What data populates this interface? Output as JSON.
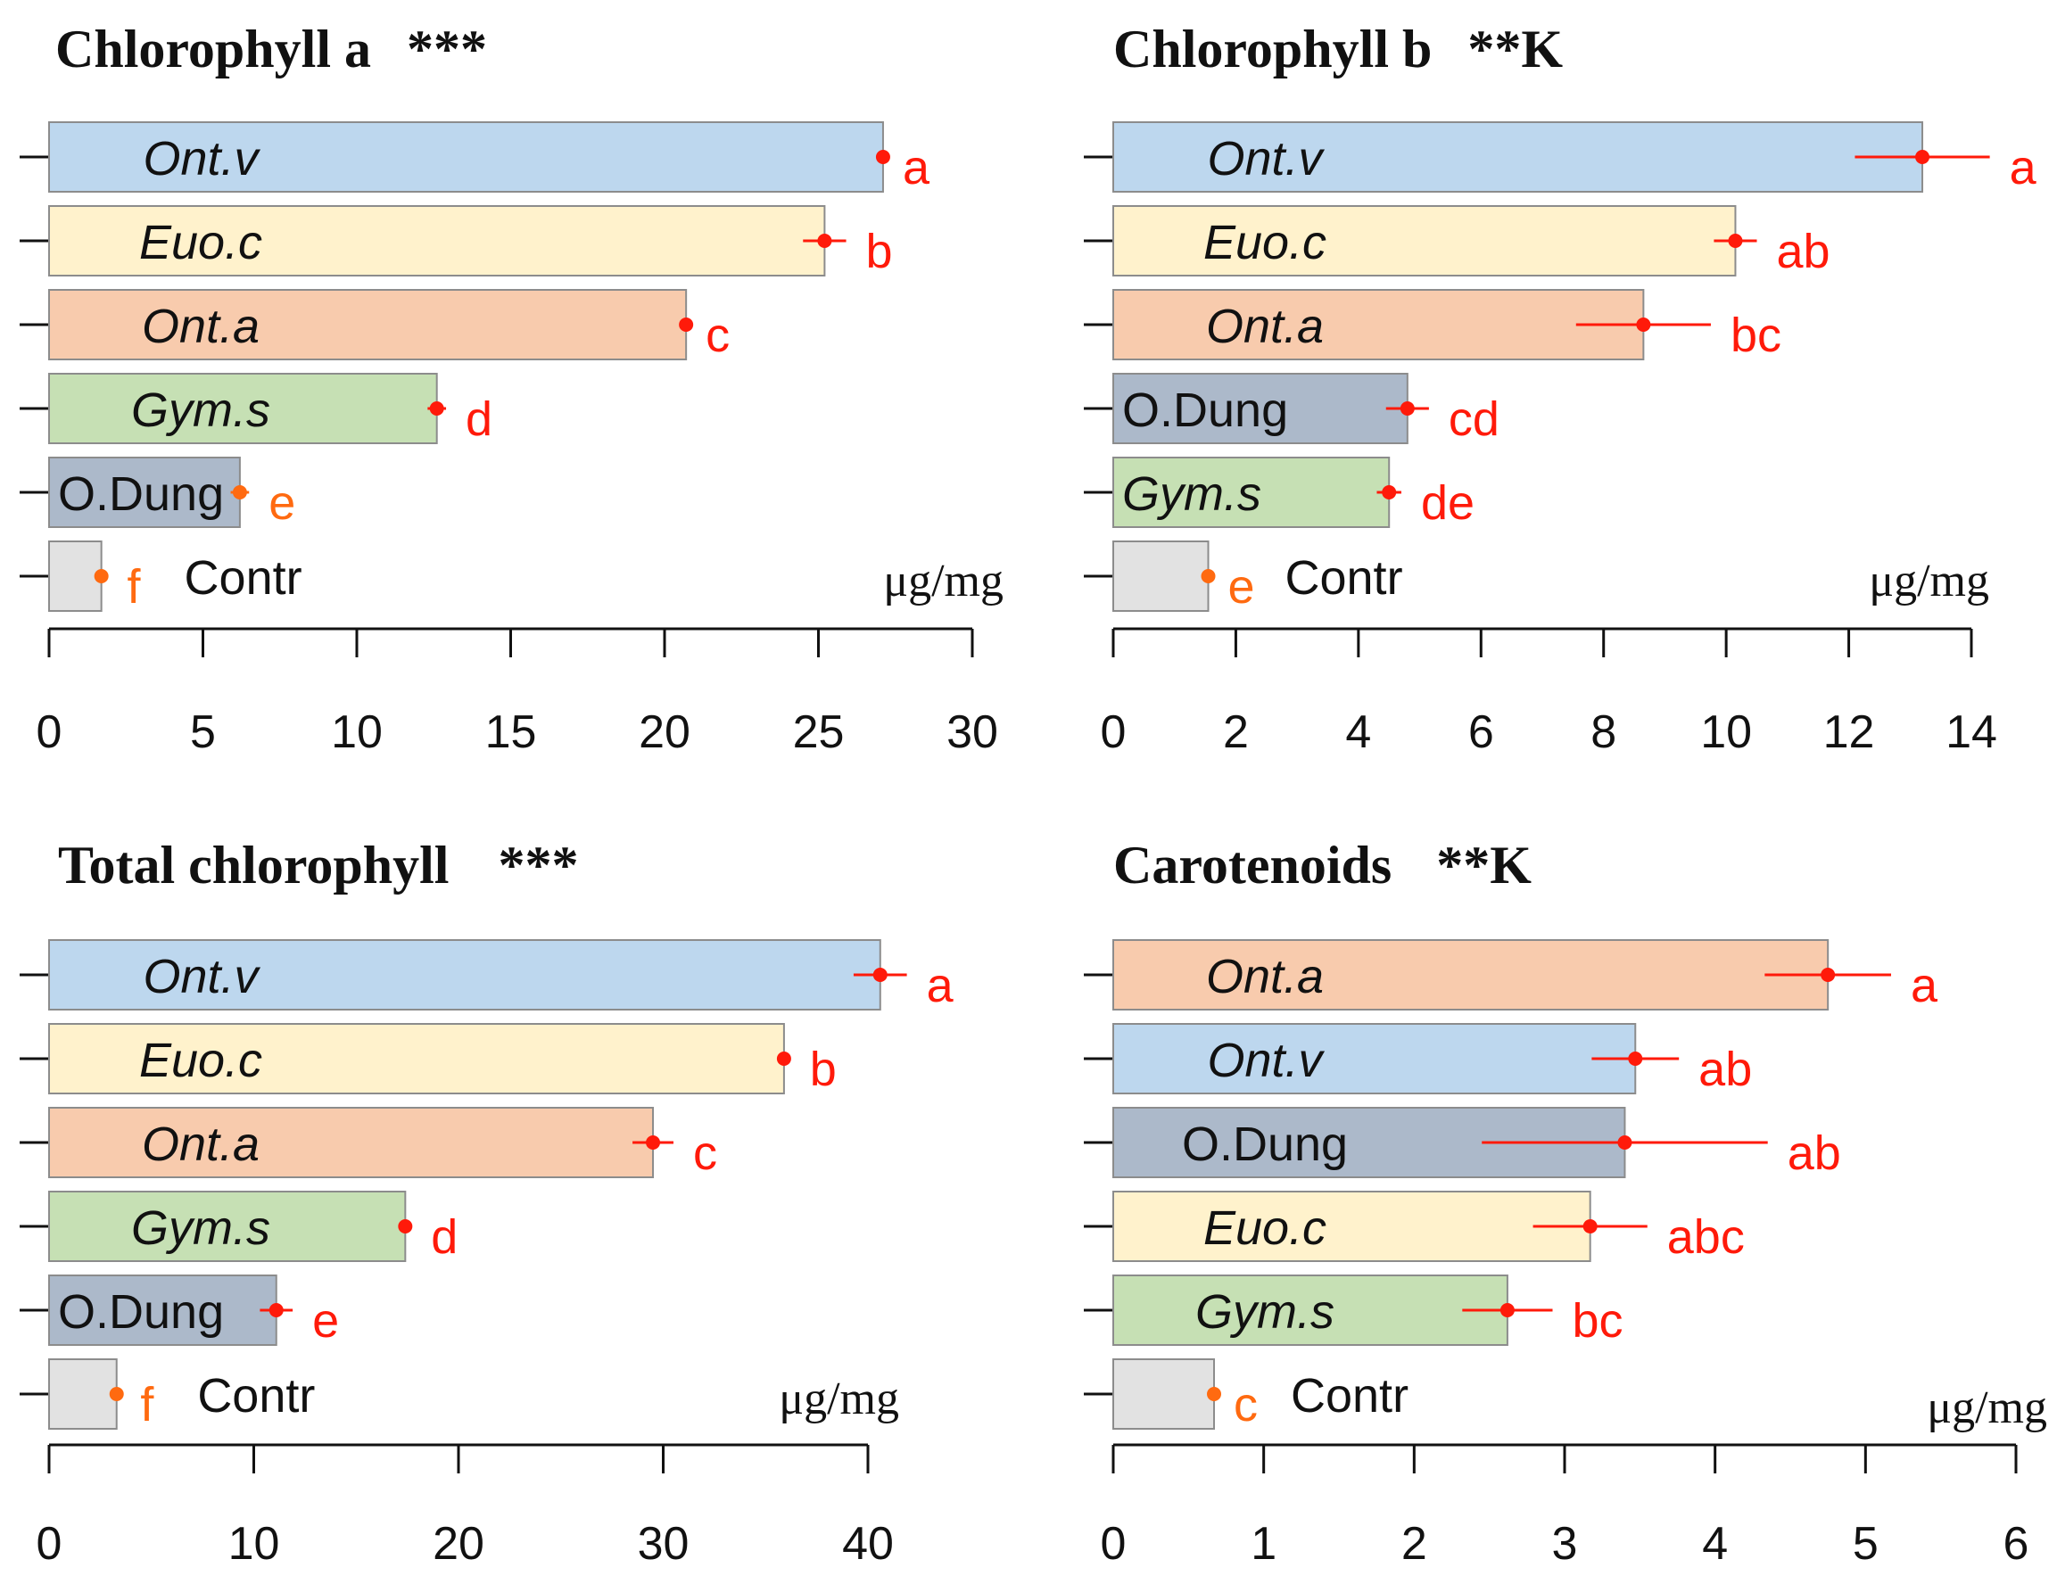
{
  "colors": {
    "Ont.v": "#bdd7ee",
    "Euo.c": "#fff2cc",
    "Ont.a": "#f8cbad",
    "Gym.s": "#c6e0b4",
    "O.Dung": "#acb9ca",
    "Contr": "#e2e2e2",
    "bar_stroke": "#8c8c8c",
    "marker_red": "#ff1a0a",
    "marker_orange": "#ff6a10",
    "axis": "#111111"
  },
  "chart_data": [
    {
      "type": "bar",
      "orientation": "horizontal",
      "title": "Chlorophyll a",
      "significance": "***",
      "unit_label": "μg/mg",
      "xlim": [
        0,
        30
      ],
      "xticks": [
        0,
        5,
        10,
        15,
        20,
        25,
        30
      ],
      "bars": [
        {
          "category": "Ont.v",
          "value": 27.1,
          "error": 0.0,
          "letter": "a",
          "italic": true
        },
        {
          "category": "Euo.c",
          "value": 25.2,
          "error": 0.7,
          "letter": "b",
          "italic": true
        },
        {
          "category": "Ont.a",
          "value": 20.7,
          "error": 0.0,
          "letter": "c",
          "italic": true
        },
        {
          "category": "Gym.s",
          "value": 12.6,
          "error": 0.3,
          "letter": "d",
          "italic": true
        },
        {
          "category": "O.Dung",
          "value": 6.2,
          "error": 0.3,
          "letter": "e",
          "italic": false
        },
        {
          "category": "Contr",
          "value": 1.7,
          "error": 0.2,
          "letter": "f",
          "italic": false
        }
      ]
    },
    {
      "type": "bar",
      "orientation": "horizontal",
      "title": "Chlorophyll b",
      "significance": "**K",
      "unit_label": "μg/mg",
      "xlim": [
        0,
        14
      ],
      "xticks": [
        0,
        2,
        4,
        6,
        8,
        10,
        12,
        14
      ],
      "bars": [
        {
          "category": "Ont.v",
          "value": 13.2,
          "error": 1.1,
          "letter": "a",
          "italic": true
        },
        {
          "category": "Euo.c",
          "value": 10.15,
          "error": 0.35,
          "letter": "ab",
          "italic": true
        },
        {
          "category": "Ont.a",
          "value": 8.65,
          "error": 1.1,
          "letter": "bc",
          "italic": true
        },
        {
          "category": "O.Dung",
          "value": 4.8,
          "error": 0.35,
          "letter": "cd",
          "italic": false
        },
        {
          "category": "Gym.s",
          "value": 4.5,
          "error": 0.2,
          "letter": "de",
          "italic": true
        },
        {
          "category": "Contr",
          "value": 1.55,
          "error": 0.0,
          "letter": "e",
          "italic": false
        }
      ]
    },
    {
      "type": "bar",
      "orientation": "horizontal",
      "title": "Total chlorophyll",
      "significance": "***",
      "unit_label": "μg/mg",
      "xlim": [
        0,
        40
      ],
      "xticks": [
        0,
        10,
        20,
        30,
        40
      ],
      "bars": [
        {
          "category": "Ont.v",
          "value": 40.6,
          "error": 1.3,
          "letter": "a",
          "italic": true
        },
        {
          "category": "Euo.c",
          "value": 35.9,
          "error": 0.3,
          "letter": "b",
          "italic": true
        },
        {
          "category": "Ont.a",
          "value": 29.5,
          "error": 1.0,
          "letter": "c",
          "italic": true
        },
        {
          "category": "Gym.s",
          "value": 17.4,
          "error": 0.3,
          "letter": "d",
          "italic": true
        },
        {
          "category": "O.Dung",
          "value": 11.1,
          "error": 0.8,
          "letter": "e",
          "italic": false
        },
        {
          "category": "Contr",
          "value": 3.3,
          "error": 0.2,
          "letter": "f",
          "italic": false
        }
      ]
    },
    {
      "type": "bar",
      "orientation": "horizontal",
      "title": "Carotenoids",
      "significance": "**K",
      "unit_label": "μg/mg",
      "xlim": [
        0,
        6
      ],
      "xticks": [
        0,
        1,
        2,
        3,
        4,
        5,
        6
      ],
      "bars": [
        {
          "category": "Ont.a",
          "value": 4.75,
          "error": 0.42,
          "letter": "a",
          "italic": true
        },
        {
          "category": "Ont.v",
          "value": 3.47,
          "error": 0.29,
          "letter": "ab",
          "italic": true
        },
        {
          "category": "O.Dung",
          "value": 3.4,
          "error": 0.95,
          "letter": "ab",
          "italic": false
        },
        {
          "category": "Euo.c",
          "value": 3.17,
          "error": 0.38,
          "letter": "abc",
          "italic": true
        },
        {
          "category": "Gym.s",
          "value": 2.62,
          "error": 0.3,
          "letter": "bc",
          "italic": true
        },
        {
          "category": "Contr",
          "value": 0.67,
          "error": 0.0,
          "letter": "c",
          "italic": false
        }
      ]
    }
  ]
}
